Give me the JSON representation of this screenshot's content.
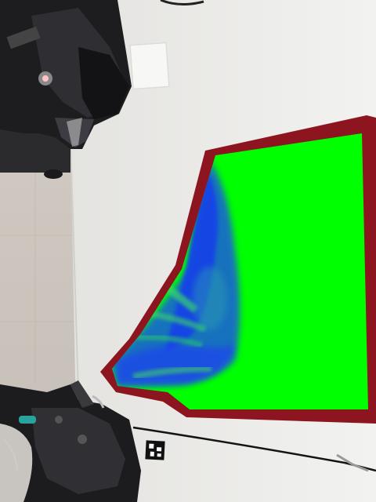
{
  "scene": {
    "description_label": "",
    "colors": {
      "floor": "#cfc9c1",
      "floor_shadow": "#b9b3ab",
      "table": "#eeeeec",
      "table_edge": "#e2e2df",
      "cloth_border": "#8a1420",
      "cloth_fill_green": "#00ff00",
      "cloth_fill_blue": "#1f55e6",
      "robot_dark": "#1c1c1e",
      "robot_mid": "#3a3a3e",
      "robot_light": "#6a6a70",
      "pad": "#f6f6f4",
      "cable": "#111111",
      "marker_black": "#111111",
      "marker_white": "#ffffff",
      "teal_accent": "#2aa3a0"
    },
    "objects": [
      {
        "name": "upper-robot-arm",
        "kind": "robot"
      },
      {
        "name": "lower-robot-arm",
        "kind": "robot"
      },
      {
        "name": "white-pad",
        "kind": "pad"
      },
      {
        "name": "cloth-segmentation-mask",
        "kind": "mask"
      },
      {
        "name": "aruco-marker",
        "kind": "fiducial"
      },
      {
        "name": "cable",
        "kind": "cable"
      }
    ]
  }
}
